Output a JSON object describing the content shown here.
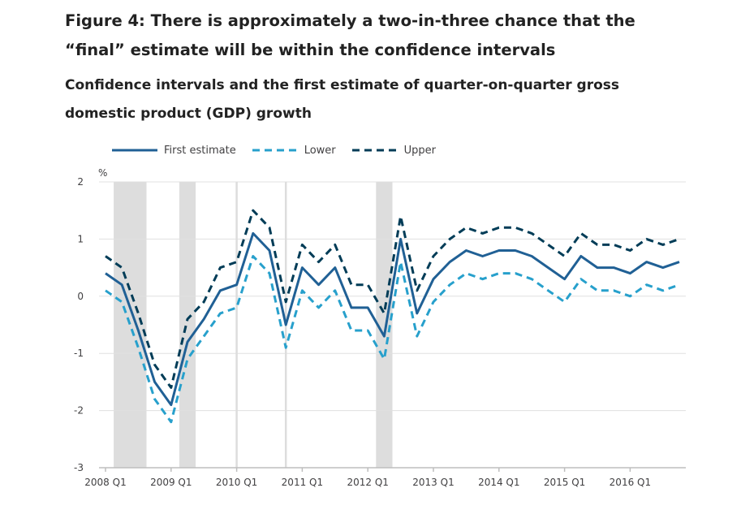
{
  "figure": {
    "title_line1": "Figure 4: There is approximately a two-in-three chance that the",
    "title_line2": "“final” estimate will be within the confidence intervals",
    "subtitle_line1": "Confidence intervals and the first estimate of quarter-on-quarter gross",
    "subtitle_line2": "domestic product (GDP) growth"
  },
  "colors": {
    "first_estimate": "#206095",
    "lower": "#27a0cc",
    "upper": "#003c57",
    "shade": "#dddddd",
    "grid": "#e0e0e0",
    "axis": "#bebebe"
  },
  "chart_data": {
    "type": "line",
    "title": "Confidence intervals and the first estimate of quarter-on-quarter gross domestic product (GDP) growth",
    "ylabel": "%",
    "xlabel": "",
    "ylim": [
      -3,
      2
    ],
    "yticks": [
      "2",
      "1",
      "0",
      "-1",
      "-2",
      "-3"
    ],
    "ytick_values": [
      2,
      1,
      0,
      -1,
      -2,
      -3
    ],
    "xtick_labels": [
      "2008 Q1",
      "2009 Q1",
      "2010 Q1",
      "2011 Q1",
      "2012 Q1",
      "2013 Q1",
      "2014 Q1",
      "2015 Q1",
      "2016 Q1"
    ],
    "xtick_index": [
      0,
      4,
      8,
      12,
      16,
      20,
      24,
      28,
      32
    ],
    "categories": [
      "2008 Q1",
      "2008 Q2",
      "2008 Q3",
      "2008 Q4",
      "2009 Q1",
      "2009 Q2",
      "2009 Q3",
      "2009 Q4",
      "2010 Q1",
      "2010 Q2",
      "2010 Q3",
      "2010 Q4",
      "2011 Q1",
      "2011 Q2",
      "2011 Q3",
      "2011 Q4",
      "2012 Q1",
      "2012 Q2",
      "2012 Q3",
      "2012 Q4",
      "2013 Q1",
      "2013 Q2",
      "2013 Q3",
      "2013 Q4",
      "2014 Q1",
      "2014 Q2",
      "2014 Q3",
      "2014 Q4",
      "2015 Q1",
      "2015 Q2",
      "2015 Q3",
      "2015 Q4",
      "2016 Q1",
      "2016 Q2",
      "2016 Q3",
      "2016 Q4"
    ],
    "series": [
      {
        "name": "First estimate",
        "style": "solid",
        "values": [
          0.4,
          0.2,
          -0.6,
          -1.5,
          -1.9,
          -0.8,
          -0.4,
          0.1,
          0.2,
          1.1,
          0.8,
          -0.5,
          0.5,
          0.2,
          0.5,
          -0.2,
          -0.2,
          -0.7,
          1.0,
          -0.3,
          0.3,
          0.6,
          0.8,
          0.7,
          0.8,
          0.8,
          0.7,
          0.5,
          0.3,
          0.7,
          0.5,
          0.5,
          0.4,
          0.6,
          0.5,
          0.6
        ]
      },
      {
        "name": "Lower",
        "style": "dashed",
        "values": [
          0.1,
          -0.1,
          -0.9,
          -1.8,
          -2.2,
          -1.1,
          -0.7,
          -0.3,
          -0.2,
          0.7,
          0.4,
          -0.9,
          0.1,
          -0.2,
          0.1,
          -0.6,
          -0.6,
          -1.1,
          0.6,
          -0.7,
          -0.1,
          0.2,
          0.4,
          0.3,
          0.4,
          0.4,
          0.3,
          0.1,
          -0.1,
          0.3,
          0.1,
          0.1,
          0.0,
          0.2,
          0.1,
          0.2
        ]
      },
      {
        "name": "Upper",
        "style": "dashed",
        "values": [
          0.7,
          0.5,
          -0.3,
          -1.2,
          -1.6,
          -0.4,
          -0.1,
          0.5,
          0.6,
          1.5,
          1.2,
          -0.1,
          0.9,
          0.6,
          0.9,
          0.2,
          0.2,
          -0.3,
          1.4,
          0.1,
          0.7,
          1.0,
          1.2,
          1.1,
          1.2,
          1.2,
          1.1,
          0.9,
          0.7,
          1.1,
          0.9,
          0.9,
          0.8,
          1.0,
          0.9,
          1.0
        ]
      }
    ],
    "shaded_ranges": [
      [
        0.5,
        2.5
      ],
      [
        4.5,
        5.5
      ],
      [
        16.5,
        17.5
      ]
    ],
    "reference_lines": [
      8,
      11
    ]
  }
}
